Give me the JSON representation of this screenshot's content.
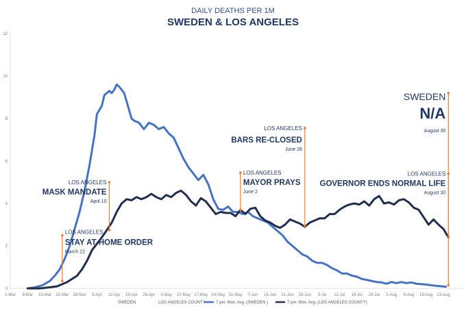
{
  "chart_data": {
    "type": "line",
    "title": "DAILY DEATHS PER 1M",
    "subtitle": "SWEDEN & LOS ANGELES",
    "xlabel": "",
    "ylabel": "",
    "ylim": [
      0,
      12
    ],
    "yticks": [
      0,
      2,
      4,
      6,
      8,
      10,
      12
    ],
    "xlim_days": [
      0,
      183
    ],
    "xticks": [
      {
        "label": "1-Mar",
        "day": 0
      },
      {
        "label": "8-Mar",
        "day": 7
      },
      {
        "label": "15-Mar",
        "day": 14
      },
      {
        "label": "22-Mar",
        "day": 21
      },
      {
        "label": "29-Mar",
        "day": 28
      },
      {
        "label": "5-Apr",
        "day": 35
      },
      {
        "label": "12-Apr",
        "day": 42
      },
      {
        "label": "19-Apr",
        "day": 49
      },
      {
        "label": "26-Apr",
        "day": 56
      },
      {
        "label": "3-May",
        "day": 63
      },
      {
        "label": "10-May",
        "day": 70
      },
      {
        "label": "17-May",
        "day": 77
      },
      {
        "label": "24-May",
        "day": 84
      },
      {
        "label": "31-May",
        "day": 91
      },
      {
        "label": "7-Jun",
        "day": 98
      },
      {
        "label": "14-Jun",
        "day": 105
      },
      {
        "label": "21-Jun",
        "day": 112
      },
      {
        "label": "28-Jun",
        "day": 119
      },
      {
        "label": "5-Jul",
        "day": 126
      },
      {
        "label": "12-Jul",
        "day": 133
      },
      {
        "label": "19-Jul",
        "day": 140
      },
      {
        "label": "26-Jul",
        "day": 147
      },
      {
        "label": "2-Aug",
        "day": 154
      },
      {
        "label": "9-Aug",
        "day": 161
      },
      {
        "label": "16-Aug",
        "day": 168
      },
      {
        "label": "23-Aug",
        "day": 175
      }
    ],
    "series": [
      {
        "name": "7 per. Mov. Avg. (SWEDEN )",
        "color": "#4472c4",
        "points": [
          [
            7,
            0
          ],
          [
            10,
            0.05
          ],
          [
            13,
            0.15
          ],
          [
            16,
            0.35
          ],
          [
            18,
            0.6
          ],
          [
            20,
            0.9
          ],
          [
            22,
            1.4
          ],
          [
            24,
            2.0
          ],
          [
            26,
            2.8
          ],
          [
            28,
            3.6
          ],
          [
            30,
            4.6
          ],
          [
            32,
            5.8
          ],
          [
            34,
            7.2
          ],
          [
            35,
            8.2
          ],
          [
            37,
            8.6
          ],
          [
            38,
            9.1
          ],
          [
            40,
            9.3
          ],
          [
            41,
            9.2
          ],
          [
            42,
            9.35
          ],
          [
            43,
            9.6
          ],
          [
            44,
            9.5
          ],
          [
            46,
            9.2
          ],
          [
            47,
            8.8
          ],
          [
            48,
            8.4
          ],
          [
            49,
            8.0
          ],
          [
            50,
            7.9
          ],
          [
            52,
            7.8
          ],
          [
            54,
            7.5
          ],
          [
            56,
            7.8
          ],
          [
            58,
            7.7
          ],
          [
            60,
            7.5
          ],
          [
            62,
            7.6
          ],
          [
            64,
            7.3
          ],
          [
            66,
            7.1
          ],
          [
            68,
            6.6
          ],
          [
            70,
            6.1
          ],
          [
            72,
            5.7
          ],
          [
            74,
            5.4
          ],
          [
            76,
            5.1
          ],
          [
            78,
            5.35
          ],
          [
            80,
            4.9
          ],
          [
            82,
            4.2
          ],
          [
            84,
            3.75
          ],
          [
            86,
            3.7
          ],
          [
            88,
            3.85
          ],
          [
            90,
            3.6
          ],
          [
            92,
            3.6
          ],
          [
            94,
            3.5
          ],
          [
            96,
            3.6
          ],
          [
            98,
            3.4
          ],
          [
            100,
            3.3
          ],
          [
            102,
            3.2
          ],
          [
            104,
            3.1
          ],
          [
            106,
            2.9
          ],
          [
            108,
            2.7
          ],
          [
            110,
            2.5
          ],
          [
            112,
            2.2
          ],
          [
            114,
            2.0
          ],
          [
            116,
            1.8
          ],
          [
            118,
            1.6
          ],
          [
            120,
            1.5
          ],
          [
            122,
            1.3
          ],
          [
            124,
            1.2
          ],
          [
            126,
            1.2
          ],
          [
            128,
            1.1
          ],
          [
            130,
            0.95
          ],
          [
            132,
            0.85
          ],
          [
            134,
            0.7
          ],
          [
            136,
            0.7
          ],
          [
            138,
            0.6
          ],
          [
            140,
            0.55
          ],
          [
            142,
            0.45
          ],
          [
            144,
            0.4
          ],
          [
            146,
            0.35
          ],
          [
            148,
            0.3
          ],
          [
            150,
            0.28
          ],
          [
            152,
            0.22
          ],
          [
            154,
            0.3
          ],
          [
            156,
            0.25
          ],
          [
            158,
            0.3
          ],
          [
            160,
            0.25
          ],
          [
            162,
            0.28
          ],
          [
            164,
            0.22
          ],
          [
            166,
            0.2
          ],
          [
            168,
            0.18
          ],
          [
            170,
            0.15
          ],
          [
            172,
            0.12
          ],
          [
            174,
            0.1
          ],
          [
            176,
            0.08
          ]
        ]
      },
      {
        "name": "7 per. Mov. Avg. (LOS ANGELES COUNTY)",
        "color": "#1f2d4e",
        "points": [
          [
            7,
            0
          ],
          [
            12,
            0
          ],
          [
            16,
            0.05
          ],
          [
            19,
            0.1
          ],
          [
            21,
            0.2
          ],
          [
            23,
            0.3
          ],
          [
            25,
            0.45
          ],
          [
            27,
            0.6
          ],
          [
            29,
            0.9
          ],
          [
            31,
            1.3
          ],
          [
            33,
            1.8
          ],
          [
            35,
            2.1
          ],
          [
            37,
            2.4
          ],
          [
            39,
            2.75
          ],
          [
            41,
            3.1
          ],
          [
            43,
            3.6
          ],
          [
            45,
            4.0
          ],
          [
            47,
            4.2
          ],
          [
            49,
            4.15
          ],
          [
            51,
            4.3
          ],
          [
            53,
            4.2
          ],
          [
            55,
            4.3
          ],
          [
            57,
            4.45
          ],
          [
            59,
            4.3
          ],
          [
            61,
            4.2
          ],
          [
            63,
            4.4
          ],
          [
            65,
            4.3
          ],
          [
            67,
            4.5
          ],
          [
            69,
            4.6
          ],
          [
            71,
            4.4
          ],
          [
            73,
            4.1
          ],
          [
            75,
            3.9
          ],
          [
            77,
            4.25
          ],
          [
            79,
            4.1
          ],
          [
            81,
            3.8
          ],
          [
            83,
            3.5
          ],
          [
            85,
            3.6
          ],
          [
            87,
            3.55
          ],
          [
            89,
            3.55
          ],
          [
            91,
            3.4
          ],
          [
            93,
            3.7
          ],
          [
            95,
            3.5
          ],
          [
            97,
            3.75
          ],
          [
            99,
            3.8
          ],
          [
            101,
            3.4
          ],
          [
            103,
            3.2
          ],
          [
            105,
            3.1
          ],
          [
            107,
            2.95
          ],
          [
            109,
            2.85
          ],
          [
            111,
            3.0
          ],
          [
            113,
            3.25
          ],
          [
            115,
            3.15
          ],
          [
            117,
            3.05
          ],
          [
            119,
            2.9
          ],
          [
            121,
            3.1
          ],
          [
            123,
            3.2
          ],
          [
            125,
            3.3
          ],
          [
            127,
            3.3
          ],
          [
            129,
            3.5
          ],
          [
            131,
            3.5
          ],
          [
            133,
            3.7
          ],
          [
            135,
            3.85
          ],
          [
            137,
            3.95
          ],
          [
            139,
            4.0
          ],
          [
            141,
            3.95
          ],
          [
            143,
            4.1
          ],
          [
            145,
            3.9
          ],
          [
            147,
            4.2
          ],
          [
            149,
            4.35
          ],
          [
            151,
            4.0
          ],
          [
            153,
            4.05
          ],
          [
            155,
            3.95
          ],
          [
            157,
            4.15
          ],
          [
            159,
            4.2
          ],
          [
            161,
            4.05
          ],
          [
            163,
            3.8
          ],
          [
            165,
            3.7
          ],
          [
            167,
            3.35
          ],
          [
            169,
            3.0
          ],
          [
            171,
            3.25
          ],
          [
            173,
            3.0
          ],
          [
            175,
            2.8
          ],
          [
            176,
            2.6
          ],
          [
            177,
            2.4
          ]
        ]
      }
    ],
    "legend": [
      {
        "label": "SWEDEN",
        "type": "text"
      },
      {
        "label": "LOS ANGELES COUNTY",
        "type": "text"
      },
      {
        "label": "7 per. Mov. Avg. (SWEDEN )",
        "type": "line",
        "color": "#4472c4"
      },
      {
        "label": "7 per. Mov. Avg. (LOS ANGELES COUNTY)",
        "type": "line",
        "color": "#1f2d4e"
      }
    ],
    "annotations": [
      {
        "id": "stay-home",
        "day": 21,
        "y_top": 2.5,
        "y_bottom": 0.35,
        "top": "LOS ANGELES",
        "main": "STAY AT HOME ORDER",
        "date": "March 22",
        "anchor": "start"
      },
      {
        "id": "mask",
        "day": 40,
        "y_top": 5.0,
        "y_bottom": 2.75,
        "top": "LOS ANGELES",
        "main": "MASK MANDATE",
        "date": "April 10",
        "anchor": "end"
      },
      {
        "id": "mayor",
        "day": 93,
        "y_top": 5.45,
        "y_bottom": 3.7,
        "top": "LOS ANGELES",
        "main": "MAYOR PRAYS",
        "date": "June 2",
        "anchor": "start"
      },
      {
        "id": "bars",
        "day": 119,
        "y_top": 7.55,
        "y_bottom": 2.95,
        "top": "LOS ANGELES",
        "main": "BARS RE-CLOSED",
        "date": "June 28",
        "anchor": "end"
      },
      {
        "id": "governor",
        "day": 177,
        "y_top": 5.4,
        "y_bottom": 2.45,
        "top": "LOS ANGELES",
        "main": "GOVERNOR ENDS NORMAL LIFE",
        "date": "August 30",
        "anchor": "end"
      },
      {
        "id": "sweden",
        "day": 177,
        "y_top": 9.2,
        "y_bottom": 0.15,
        "top": "SWEDEN",
        "main": "N/A",
        "date": "August 30",
        "anchor": "end"
      }
    ]
  }
}
